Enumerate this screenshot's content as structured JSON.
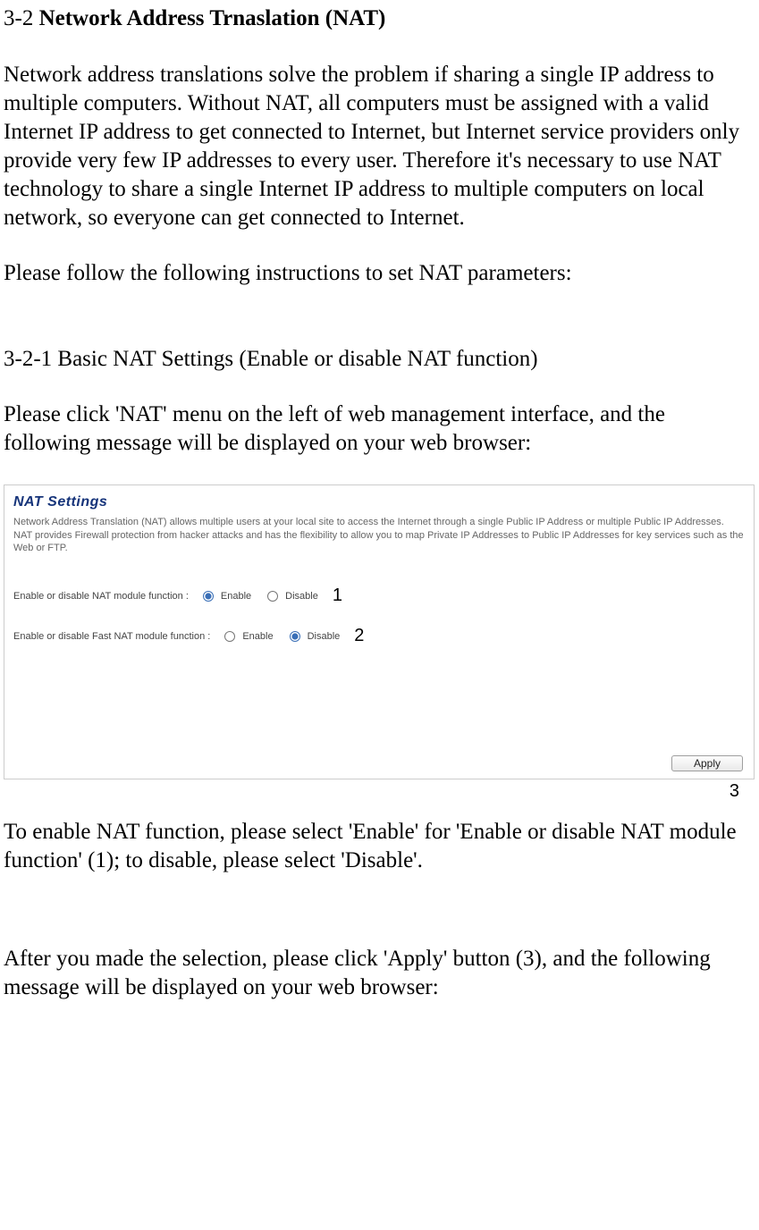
{
  "heading": {
    "prefix": "3-2 ",
    "main": "Network Address Trnaslation (NAT)"
  },
  "para1": "Network address translations solve the problem if sharing a single IP address to multiple computers. Without NAT, all computers must be assigned with a valid Internet IP address to get connected to Internet, but Internet service providers only provide very few IP addresses to every user. Therefore it's necessary to use NAT technology to share a single Internet IP address to multiple computers on local network, so everyone can get connected to Internet.",
  "para2": "Please follow the following instructions to set NAT parameters:",
  "subheading": "3-2-1 Basic NAT Settings (Enable or disable NAT function)",
  "para3": "Please click 'NAT' menu on the left of web management interface, and the following message will be displayed on your web browser:",
  "nat": {
    "title": "NAT Settings",
    "desc": "Network Address Translation (NAT) allows multiple users at your local site to access the Internet through a single Public IP Address or multiple Public IP Addresses. NAT provides Firewall protection from hacker attacks and has the flexibility to allow you to map Private IP Addresses to Public IP Addresses for key services such as the Web or FTP.",
    "row1": {
      "label": "Enable or disable NAT module function :",
      "enable": "Enable",
      "disable": "Disable",
      "callout": "1"
    },
    "row2": {
      "label": "Enable or disable Fast NAT module function :",
      "enable": "Enable",
      "disable": "Disable",
      "callout": "2"
    },
    "apply": "Apply"
  },
  "callout3": "3",
  "para4": "To enable NAT function, please select 'Enable' for 'Enable or disable NAT module function' (1); to disable, please select 'Disable'.",
  "para5": "After you made the selection, please click 'Apply' button (3), and the following message will be displayed on your web browser:"
}
